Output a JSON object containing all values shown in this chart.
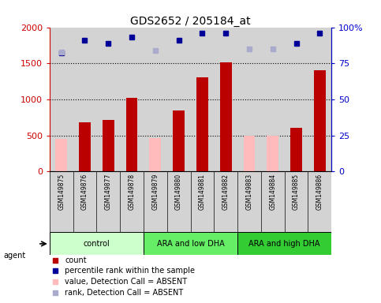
{
  "title": "GDS2652 / 205184_at",
  "samples": [
    "GSM149875",
    "GSM149876",
    "GSM149877",
    "GSM149878",
    "GSM149879",
    "GSM149880",
    "GSM149881",
    "GSM149882",
    "GSM149883",
    "GSM149884",
    "GSM149885",
    "GSM149886"
  ],
  "groups": [
    {
      "label": "control",
      "start": 0,
      "end": 3,
      "color": "#ccffcc"
    },
    {
      "label": "ARA and low DHA",
      "start": 4,
      "end": 7,
      "color": "#66ee66"
    },
    {
      "label": "ARA and high DHA",
      "start": 8,
      "end": 11,
      "color": "#33cc33"
    }
  ],
  "count_values": [
    null,
    680,
    720,
    1020,
    null,
    850,
    1310,
    1510,
    null,
    null,
    610,
    1400
  ],
  "absent_value_values": [
    450,
    null,
    null,
    null,
    460,
    null,
    null,
    null,
    500,
    500,
    null,
    null
  ],
  "percentile_rank": [
    82,
    91,
    89,
    93,
    null,
    91,
    96,
    96,
    null,
    null,
    89,
    96
  ],
  "absent_rank_values": [
    83,
    null,
    null,
    null,
    84,
    null,
    null,
    null,
    85,
    85,
    null,
    null
  ],
  "ylim_left": [
    0,
    2000
  ],
  "ylim_right": [
    0,
    100
  ],
  "yticks_left": [
    0,
    500,
    1000,
    1500,
    2000
  ],
  "yticks_right": [
    0,
    25,
    50,
    75,
    100
  ],
  "ytick_labels_right": [
    "0",
    "25",
    "50",
    "75",
    "100%"
  ],
  "left_axis_color": "#cc0000",
  "right_axis_color": "#0000cc",
  "bar_color_present": "#bb0000",
  "bar_color_absent": "#ffbbbb",
  "dot_color_present": "#000099",
  "dot_color_absent": "#aaaacc",
  "grid_color": "#000000",
  "bg_color": "#d3d3d3",
  "plot_bg": "#ffffff",
  "agent_label": "agent",
  "legend_items": [
    {
      "label": "count",
      "color": "#bb0000",
      "marker": "s"
    },
    {
      "label": "percentile rank within the sample",
      "color": "#000099",
      "marker": "s"
    },
    {
      "label": "value, Detection Call = ABSENT",
      "color": "#ffbbbb",
      "marker": "s"
    },
    {
      "label": "rank, Detection Call = ABSENT",
      "color": "#aaaacc",
      "marker": "s"
    }
  ]
}
